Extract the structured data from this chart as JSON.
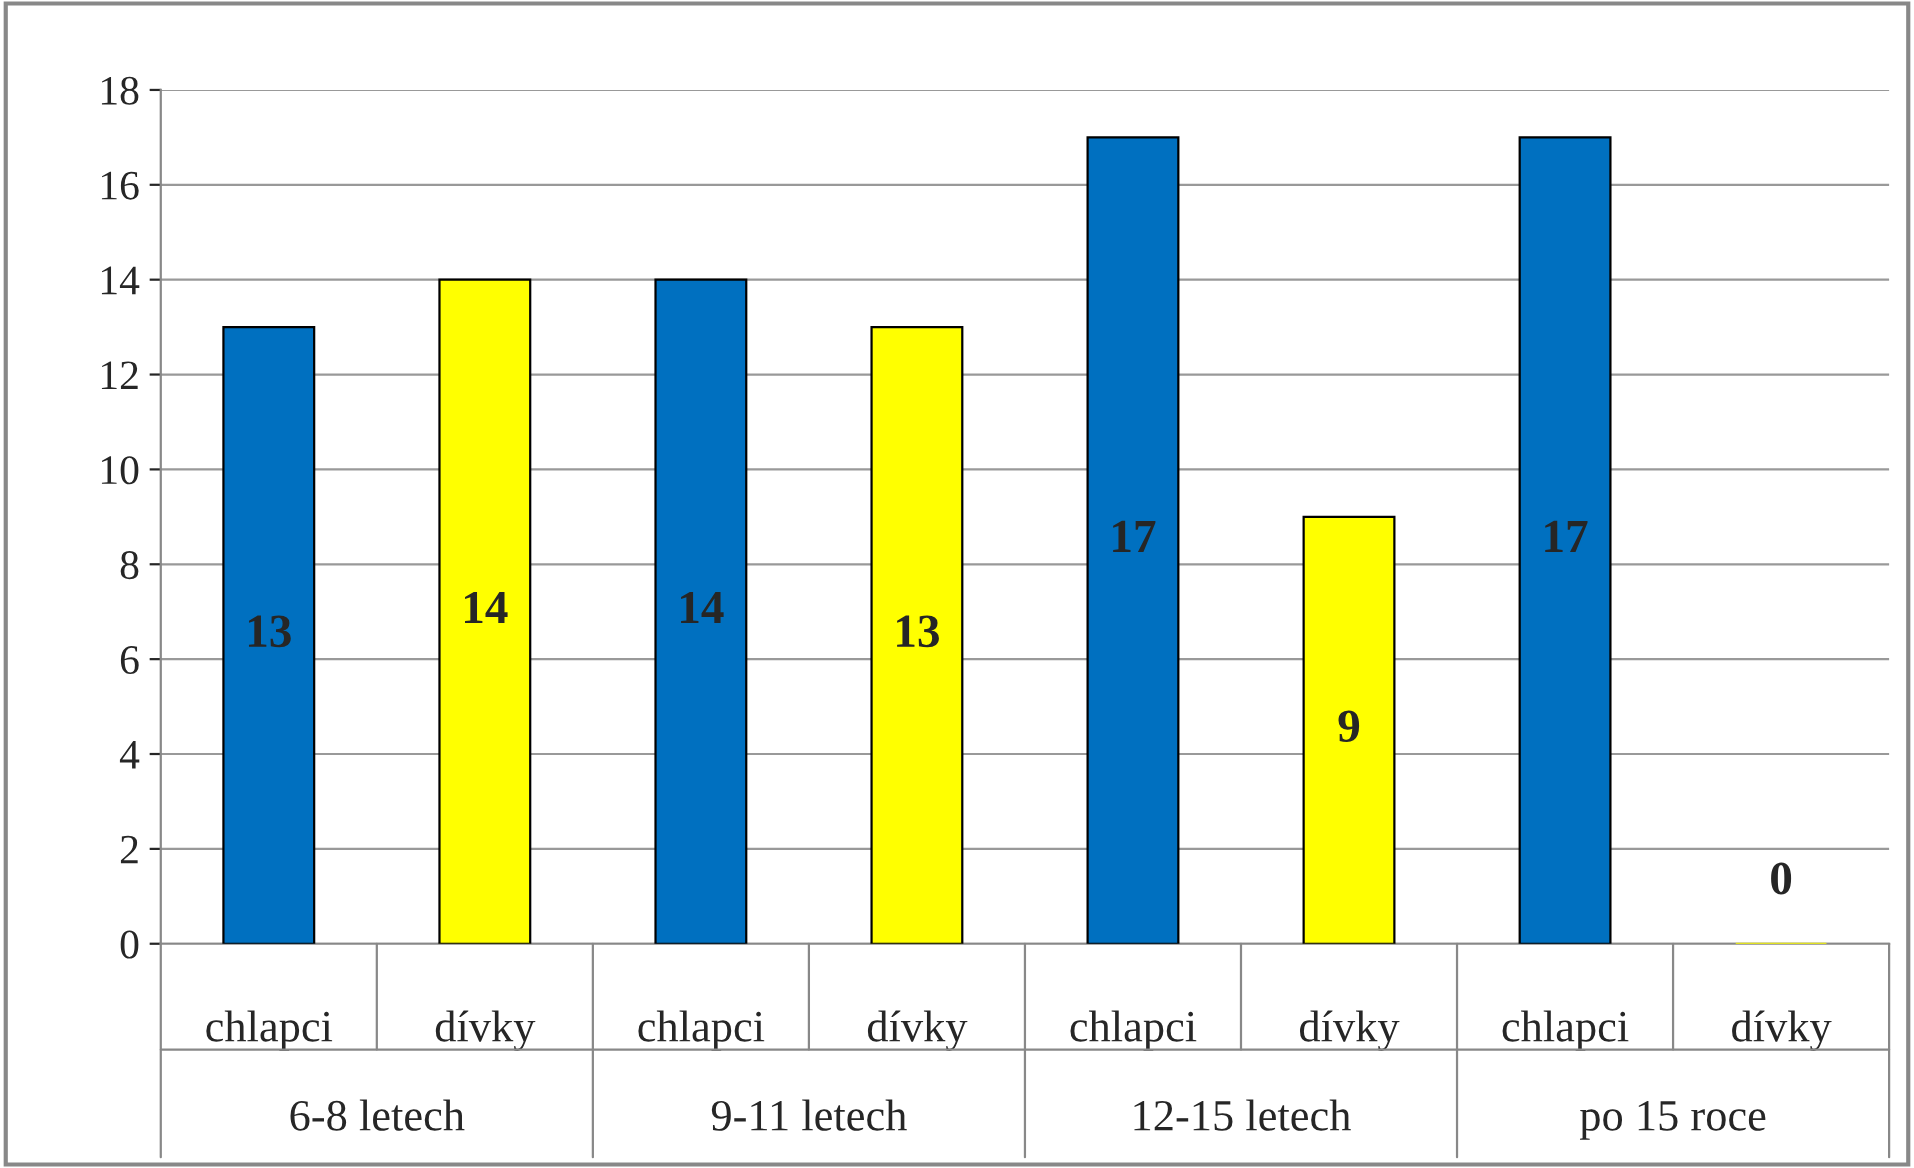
{
  "chart_data": {
    "type": "bar",
    "categories": [
      "chlapci",
      "dívky",
      "chlapci",
      "dívky",
      "chlapci",
      "dívky",
      "chlapci",
      "dívky"
    ],
    "values": [
      13,
      14,
      14,
      13,
      17,
      9,
      17,
      0
    ],
    "colors": [
      "#0070c0",
      "#ffff00",
      "#0070c0",
      "#ffff00",
      "#0070c0",
      "#ffff00",
      "#0070c0",
      "#ffff00"
    ],
    "annotations": [
      "6-8 letech",
      "9-11 letech",
      "12-15 letech",
      "po 15 roce"
    ],
    "ylim": [
      0,
      18
    ],
    "yticks": [
      0,
      2,
      4,
      6,
      8,
      10,
      12,
      14,
      16,
      18
    ],
    "grid": "y",
    "legend": false,
    "data_labels": true
  }
}
